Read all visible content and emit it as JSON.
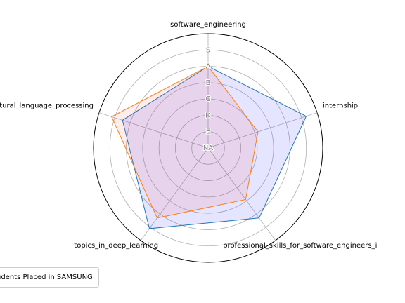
{
  "chart_data": {
    "type": "radar",
    "axes": [
      "software_engineering",
      "internship",
      "professional_skills_for_software_engineers_i",
      "topics_in_deep_learning",
      "natural_language_processing"
    ],
    "levels": [
      "NA",
      "E",
      "D",
      "C",
      "B",
      "A",
      "S"
    ],
    "series": [
      {
        "name": "",
        "color": "#1f77b4",
        "fill": "#0000ff",
        "values": [
          5,
          6.3,
          5.3,
          6.1,
          5.5
        ]
      },
      {
        "name": "",
        "color": "#ff7f0e",
        "fill": "#ff4040",
        "values": [
          5,
          3.2,
          3.9,
          5.3,
          6.2
        ]
      }
    ],
    "rmax": 7,
    "grid": true,
    "legend_position": "lower-left",
    "legend_text": "udents Placed in SAMSUNG"
  }
}
